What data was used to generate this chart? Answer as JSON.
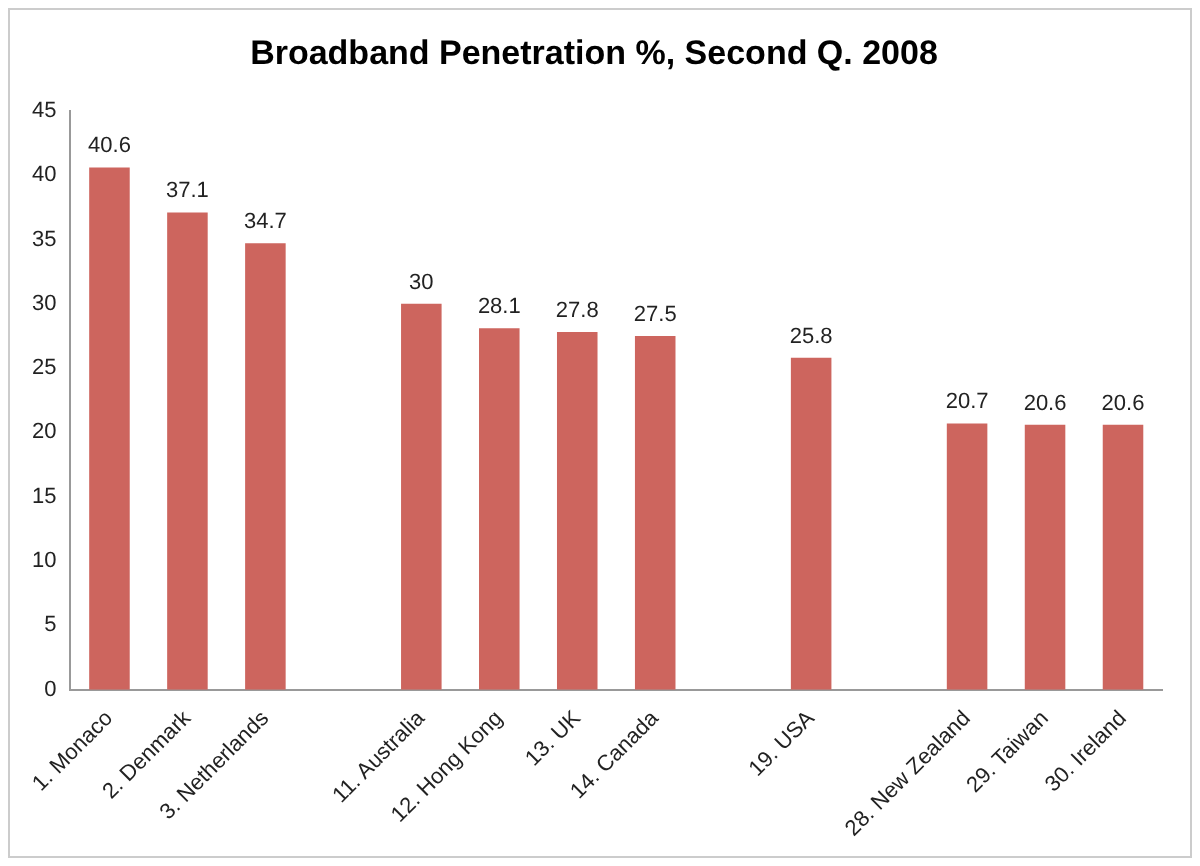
{
  "chart_data": {
    "type": "bar",
    "title": "Broadband Penetration %, Second Q. 2008",
    "categories": [
      "1. Monaco",
      "2. Denmark",
      "3. Netherlands",
      null,
      "11. Australia",
      "12. Hong Kong",
      "13. UK",
      "14. Canada",
      null,
      "19. USA",
      null,
      "28. New Zealand",
      "29. Taiwan",
      "30. Ireland"
    ],
    "values": [
      40.6,
      37.1,
      34.7,
      null,
      30,
      28.1,
      27.8,
      27.5,
      null,
      25.8,
      null,
      20.7,
      20.6,
      20.6
    ],
    "color": "#cd655e",
    "ylim": [
      0,
      45
    ],
    "yticks": [
      0,
      5,
      10,
      15,
      20,
      25,
      30,
      35,
      40,
      45
    ],
    "grid": false,
    "legend": false,
    "data_labels": true
  }
}
